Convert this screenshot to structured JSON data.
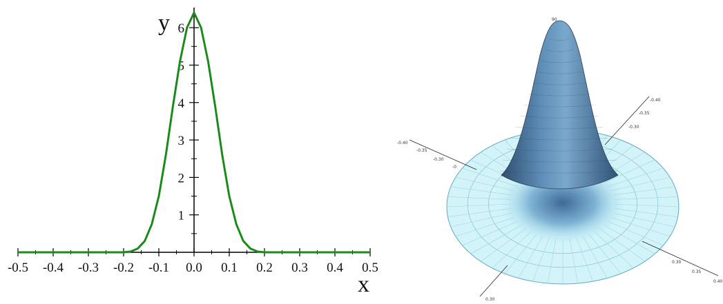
{
  "colors": {
    "curve": "#1a8a1a",
    "axis": "#000000",
    "surface_top": "#3f6a94",
    "surface_mid": "#6f9fc6",
    "disc": "#bfeff6",
    "disc_edge": "#5fa9c0"
  },
  "chart_data": [
    {
      "type": "line",
      "title": "",
      "xlabel": "x",
      "ylabel": "y",
      "xlim": [
        -0.5,
        0.5
      ],
      "ylim": [
        0,
        6.5
      ],
      "x_ticks": [
        "-0.5",
        "-0.4",
        "-0.3",
        "-0.2",
        "-0.1",
        "0.0",
        "0.1",
        "0.2",
        "0.3",
        "0.4",
        "0.5"
      ],
      "y_ticks": [
        "1",
        "2",
        "3",
        "4",
        "5",
        "6"
      ],
      "grid": false,
      "series": [
        {
          "x": [
            -0.5,
            -0.2,
            -0.18,
            -0.16,
            -0.14,
            -0.12,
            -0.1,
            -0.08,
            -0.06,
            -0.04,
            -0.02,
            0.0,
            0.02,
            0.04,
            0.06,
            0.08,
            0.1,
            0.12,
            0.14,
            0.16,
            0.18,
            0.2,
            0.5
          ],
          "y": [
            0,
            0,
            0.02,
            0.1,
            0.3,
            0.75,
            1.5,
            2.6,
            3.9,
            5.1,
            6.0,
            6.4,
            6.0,
            5.1,
            3.9,
            2.6,
            1.5,
            0.75,
            0.3,
            0.1,
            0.02,
            0,
            0
          ]
        }
      ]
    },
    {
      "type": "surface3d",
      "title": "",
      "peak_label": "90",
      "axis1_ticks": [
        "-0.40",
        "-0.35",
        "-0.30",
        "-0"
      ],
      "axis2_ticks": [
        "-0.40",
        "-0.35",
        "-0.30"
      ],
      "axis3_ticks": [
        "0.30",
        "0.35",
        "0.40"
      ],
      "axis4_ticks": [
        "0.30"
      ]
    }
  ]
}
